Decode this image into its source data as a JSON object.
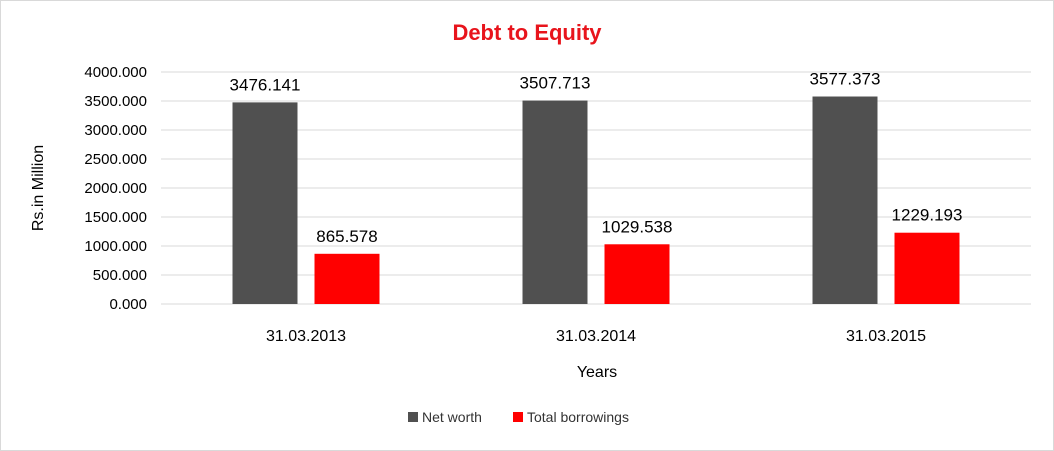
{
  "chart_data": {
    "type": "bar",
    "title": "Debt to Equity",
    "xlabel": "Years",
    "ylabel": "Rs.in Million",
    "categories": [
      "31.03.2013",
      "31.03.2014",
      "31.03.2015"
    ],
    "series": [
      {
        "name": "Net worth",
        "color": "#505050",
        "values": [
          3476.141,
          3507.713,
          3577.373
        ],
        "labels": [
          "3476.141",
          "3507.713",
          "3577.373"
        ]
      },
      {
        "name": "Total borrowings",
        "color": "#ff0000",
        "values": [
          865.578,
          1029.538,
          1229.193
        ],
        "labels": [
          "865.578",
          "1029.538",
          "1229.193"
        ]
      }
    ],
    "ylim": [
      0,
      4000
    ],
    "yticks": [
      0,
      500,
      1000,
      1500,
      2000,
      2500,
      3000,
      3500,
      4000
    ],
    "ytick_labels": [
      "0.000",
      "500.000",
      "1000.000",
      "1500.000",
      "2000.000",
      "2500.000",
      "3000.000",
      "3500.000",
      "4000.000"
    ],
    "grid": true,
    "legend_position": "bottom",
    "title_color": "#e8141c",
    "gridline_color": "#d9d9d9"
  }
}
